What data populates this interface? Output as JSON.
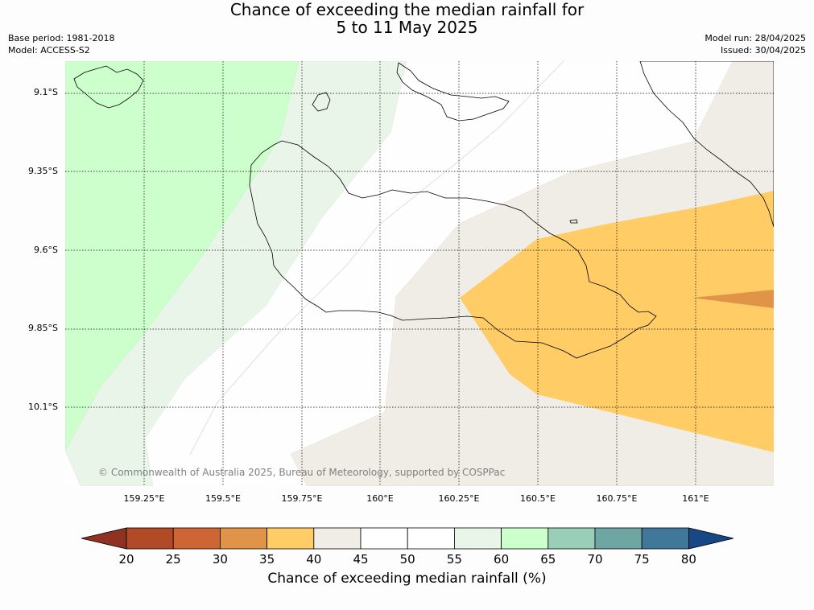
{
  "header": {
    "title_line1": "Chance of exceeding the median rainfall for",
    "title_line2": "5 to 11 May 2025",
    "base_period": "Base period: 1981-2018",
    "model": "Model: ACCESS-S2",
    "model_run": "Model run: 28/04/2025",
    "issued": "Issued: 30/04/2025"
  },
  "map": {
    "lat_labels": [
      "9.1°S",
      "9.35°S",
      "9.6°S",
      "9.85°S",
      "10.1°S"
    ],
    "lon_labels": [
      "159.25°E",
      "159.5°E",
      "159.75°E",
      "160°E",
      "160.25°E",
      "160.5°E",
      "160.75°E",
      "161°E"
    ],
    "copyright": "© Commonwealth of Australia 2025, Bureau of Meteorology, supported by COSPPac"
  },
  "colorbar": {
    "ticks": [
      "20",
      "25",
      "30",
      "35",
      "40",
      "45",
      "50",
      "55",
      "60",
      "65",
      "70",
      "75",
      "80"
    ],
    "colors": [
      "#8f3222",
      "#b14a26",
      "#cd6634",
      "#e09447",
      "#ffcc66",
      "#f0ece6",
      "#ffffff",
      "#ffffff",
      "#eaf5ea",
      "#ccffcc",
      "#99ceb8",
      "#6ea6a4",
      "#3f7898",
      "#164886"
    ],
    "label": "Chance of exceeding median rainfall (%)"
  }
}
